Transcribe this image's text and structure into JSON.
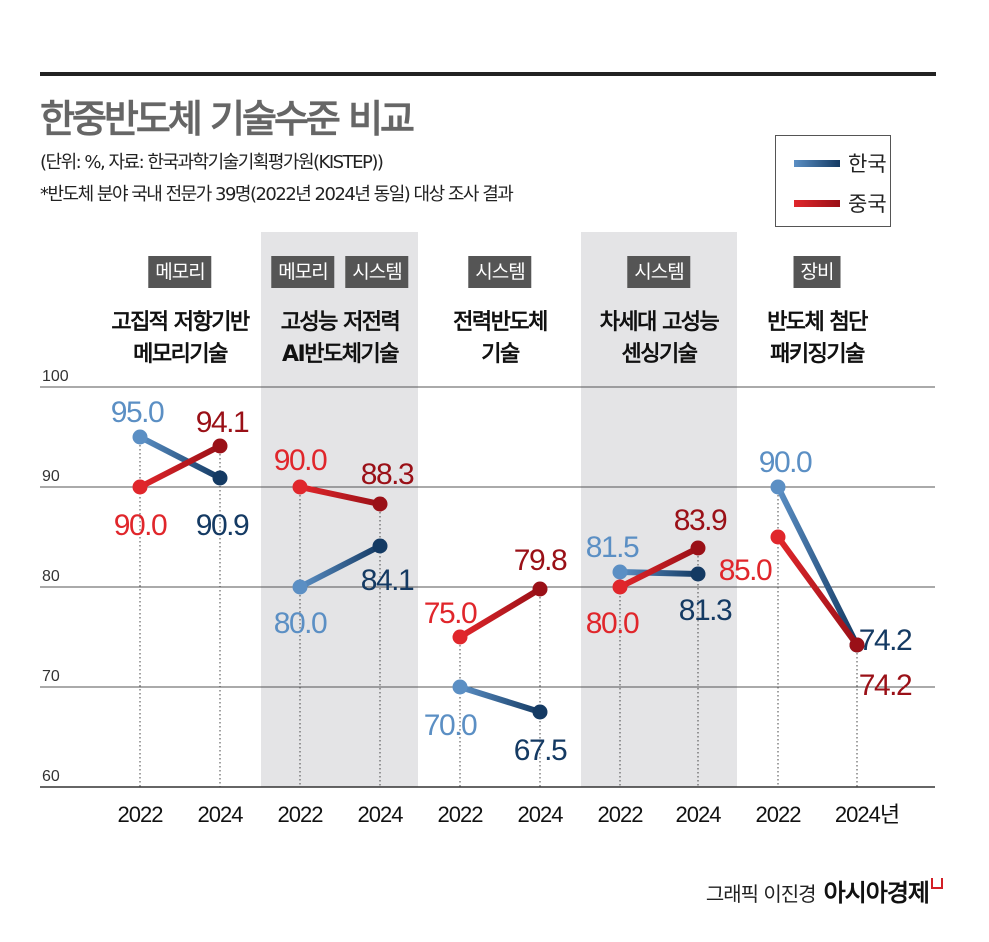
{
  "header": {
    "title": "한중반도체 기술수준 비교",
    "unit_source": "(단위: %, 자료: 한국과학기술기획평가원(KISTEP))",
    "note": "*반도체 분야 국내 전문가 39명(2022년  2024년 동일) 대상 조사 결과"
  },
  "legend": {
    "korea": "한국",
    "china": "중국"
  },
  "colors": {
    "korea_2022": "#5b8fc4",
    "korea_2024": "#143a63",
    "china_2022": "#e0262b",
    "china_2024": "#9a1017",
    "shade": "#e4e4e6",
    "tag": "#555555"
  },
  "groups": [
    {
      "tags": [
        "메모리"
      ],
      "title": [
        "고집적 저항기반",
        "메모리기술"
      ]
    },
    {
      "tags": [
        "메모리",
        "시스템"
      ],
      "title": [
        "고성능  저전력",
        "AI반도체기술"
      ]
    },
    {
      "tags": [
        "시스템"
      ],
      "title": [
        "전력반도체",
        "기술"
      ]
    },
    {
      "tags": [
        "시스템"
      ],
      "title": [
        "차세대 고성능",
        "센싱기술"
      ]
    },
    {
      "tags": [
        "장비"
      ],
      "title": [
        "반도체 첨단",
        "패키징기술"
      ]
    }
  ],
  "chart_data": {
    "type": "line",
    "x_labels": [
      "2022",
      "2024",
      "2022",
      "2024",
      "2022",
      "2024",
      "2022",
      "2024",
      "2022",
      "2024년"
    ],
    "y_ticks": [
      "100",
      "90",
      "80",
      "70",
      "60"
    ],
    "ylim": [
      60,
      100
    ],
    "grid": true,
    "legend_placement": "top-right",
    "series": [
      {
        "name": "한국",
        "values": [
          [
            95.0,
            90.9
          ],
          [
            80.0,
            84.1
          ],
          [
            70.0,
            67.5
          ],
          [
            81.5,
            81.3
          ],
          [
            90.0,
            74.2
          ]
        ]
      },
      {
        "name": "중국",
        "values": [
          [
            90.0,
            94.1
          ],
          [
            90.0,
            88.3
          ],
          [
            75.0,
            79.8
          ],
          [
            80.0,
            83.9
          ],
          [
            85.0,
            74.2
          ]
        ]
      }
    ],
    "value_labels": {
      "korea": [
        [
          "95.0",
          "90.9"
        ],
        [
          "80.0",
          "84.1"
        ],
        [
          "70.0",
          "67.5"
        ],
        [
          "81.5",
          "81.3"
        ],
        [
          "90.0",
          "74.2"
        ]
      ],
      "china": [
        [
          "90.0",
          "94.1"
        ],
        [
          "90.0",
          "88.3"
        ],
        [
          "75.0",
          "79.8"
        ],
        [
          "80.0",
          "83.9"
        ],
        [
          "85.0",
          "74.2"
        ]
      ]
    }
  },
  "footer": {
    "credit": "그래픽 이진경",
    "brand": "아시아경제"
  }
}
